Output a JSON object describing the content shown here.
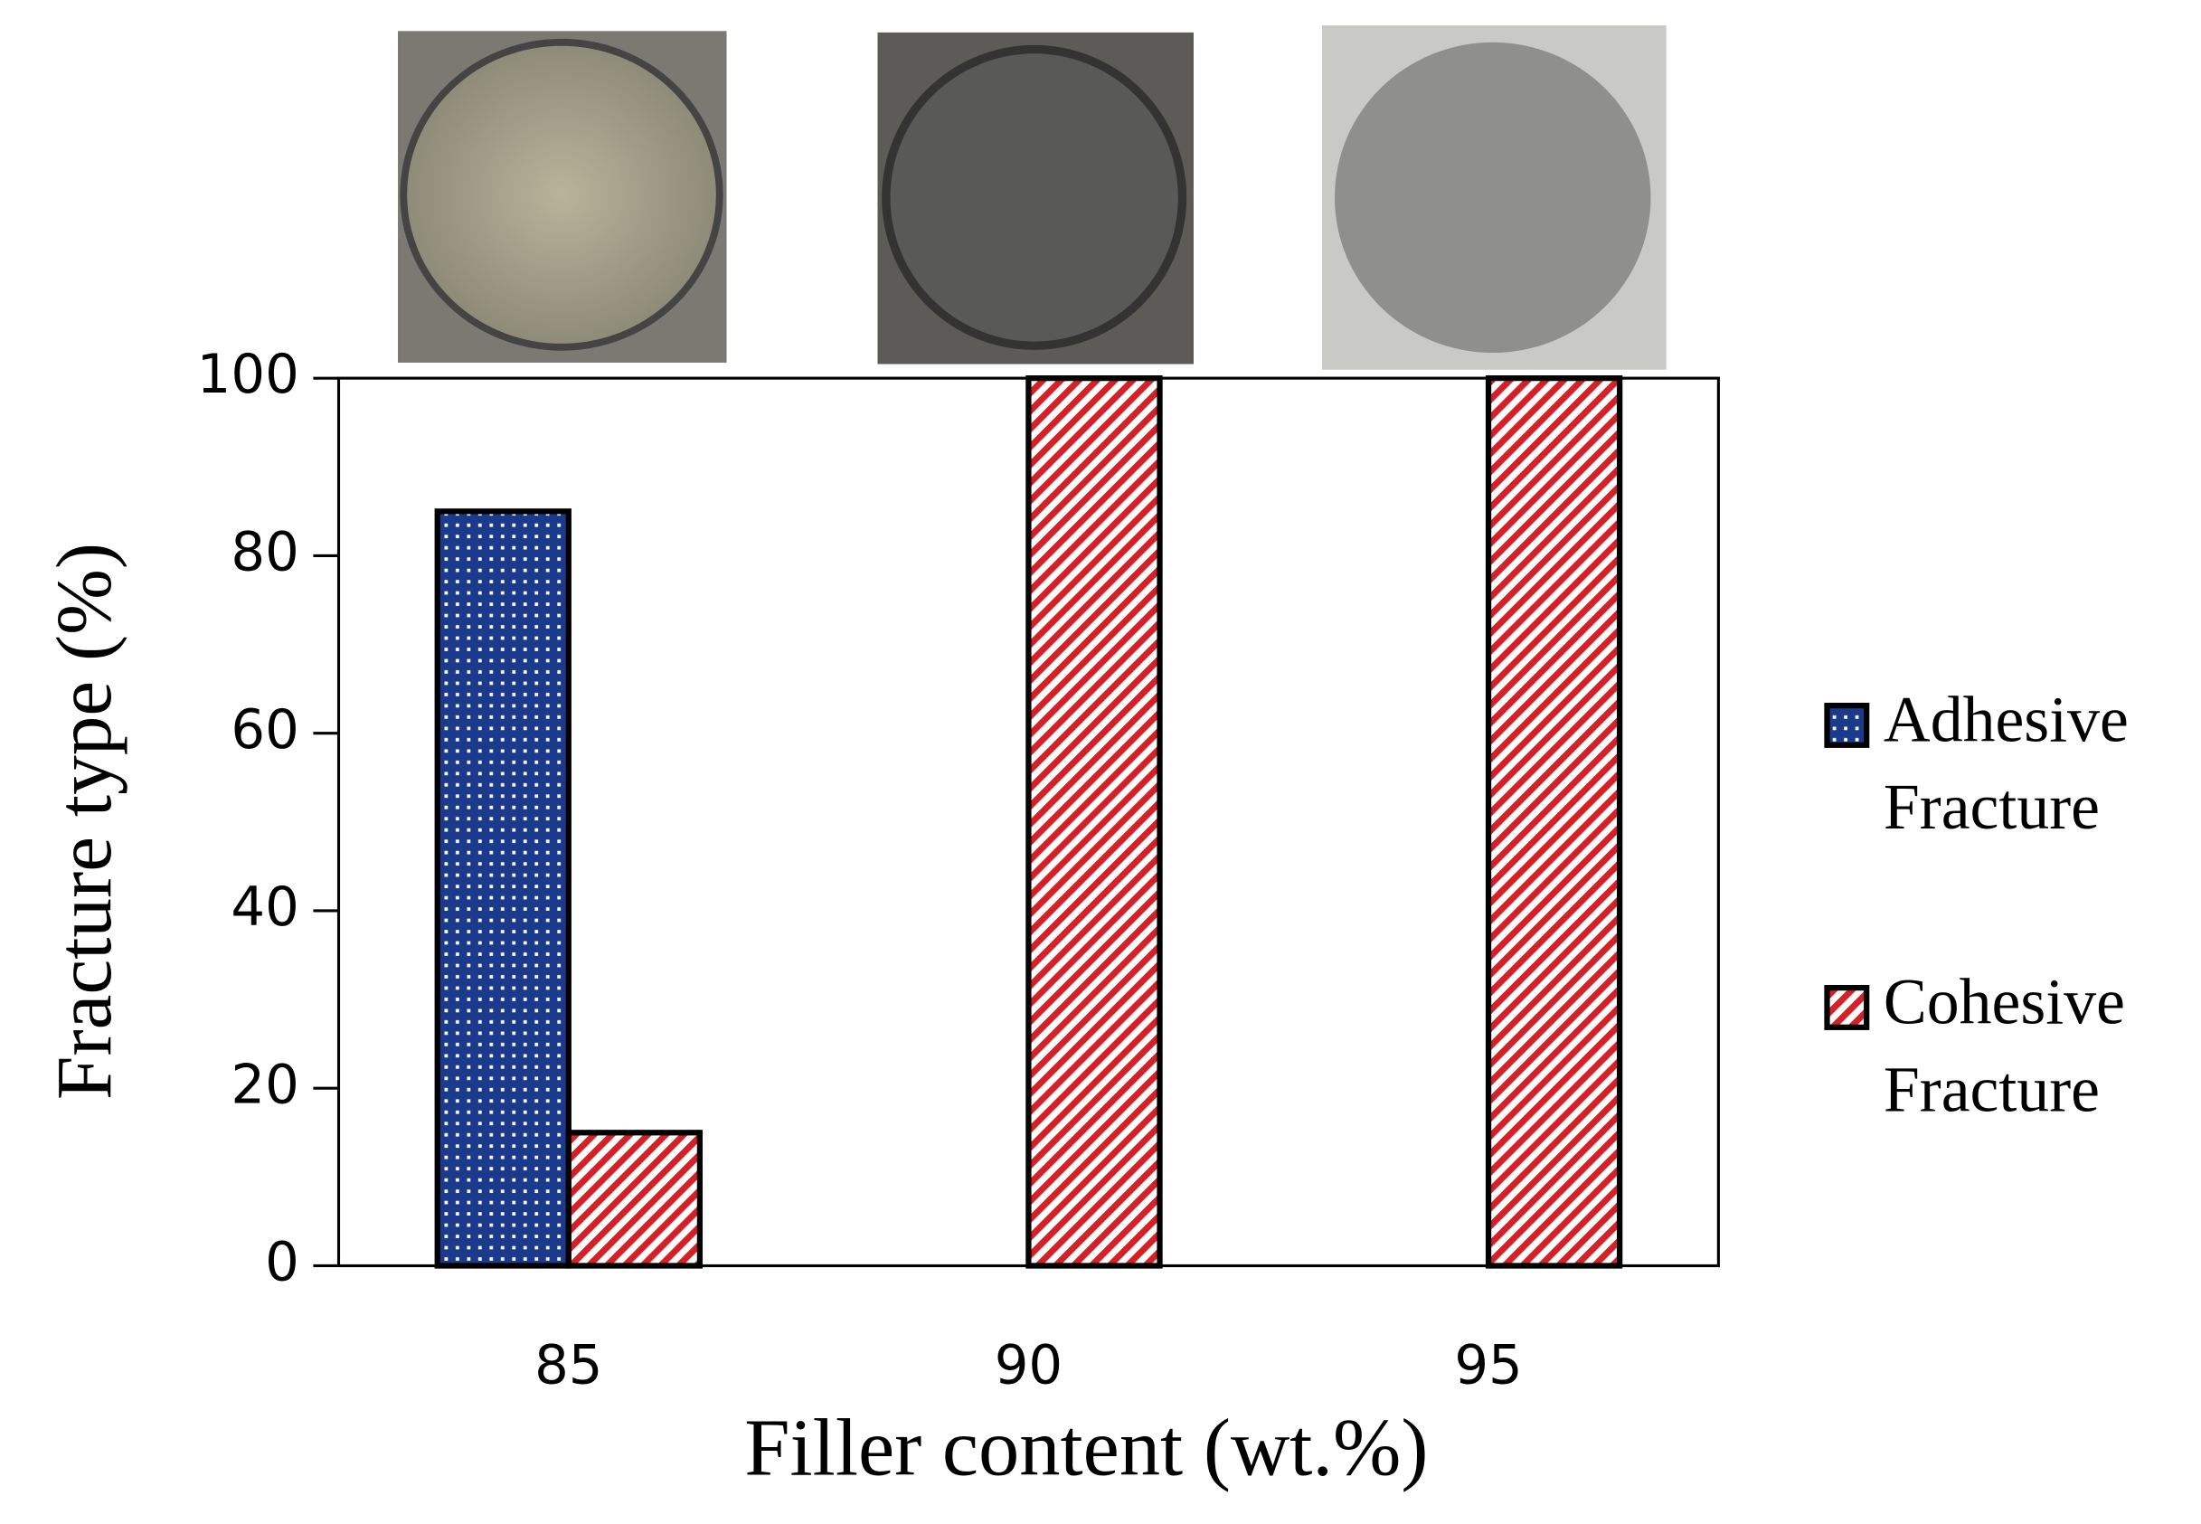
{
  "chart_data": {
    "type": "bar",
    "x_label": "Filler content (wt.%)",
    "y_label": "Fracture type (%)",
    "categories": [
      "85",
      "90",
      "95"
    ],
    "series": [
      {
        "name": "Adhesive Fracture",
        "color": "#1c3a8c",
        "values": [
          85,
          0,
          0
        ]
      },
      {
        "name": "Cohesive Fracture",
        "color": "#d42027",
        "values": [
          15,
          100,
          100
        ]
      }
    ],
    "ylim": [
      0,
      100
    ],
    "yticks": [
      0,
      20,
      40,
      60,
      80,
      100
    ],
    "legend": "right"
  }
}
